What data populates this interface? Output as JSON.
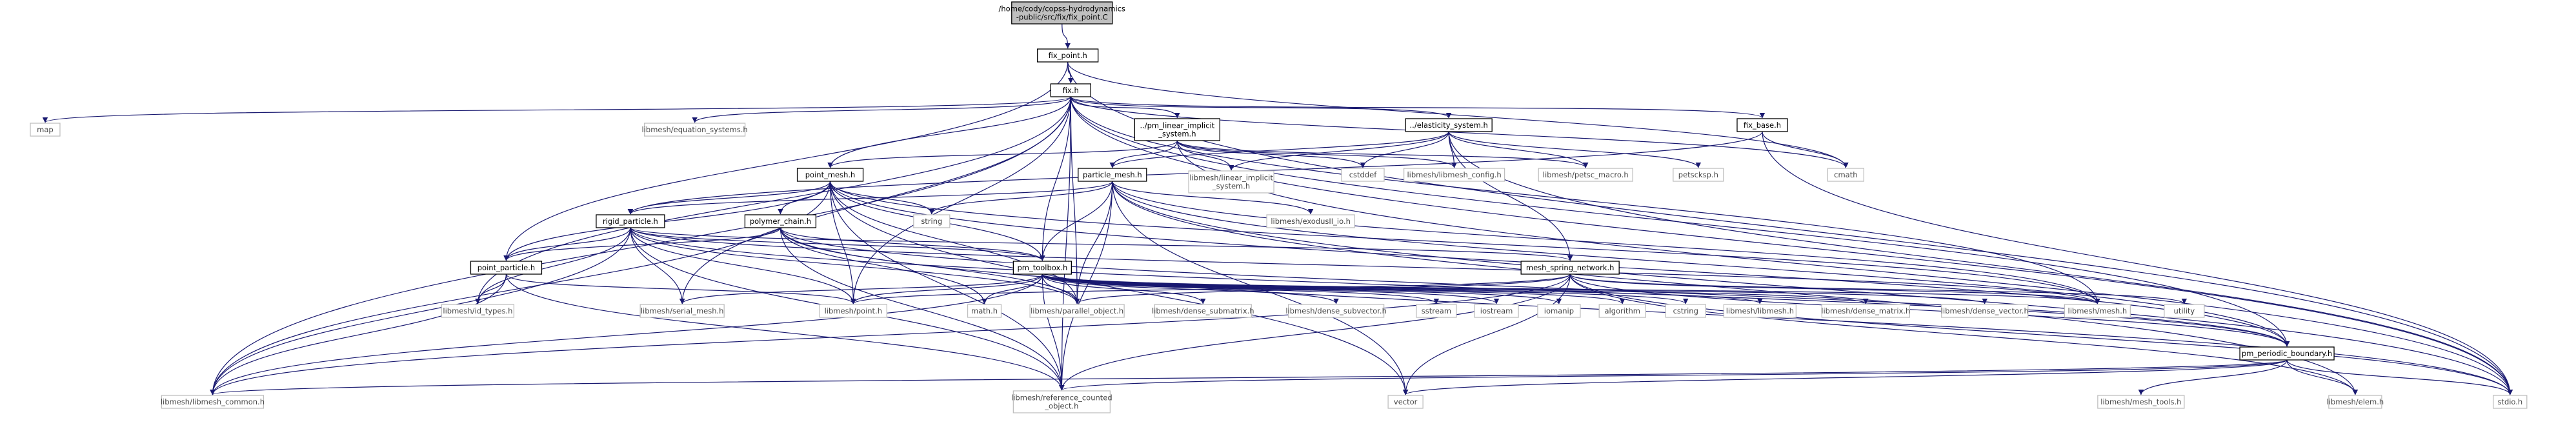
{
  "nodes": {
    "fix_point_c": {
      "lines": [
        "/home/cody/copss-hydrodynamics",
        "-public/src/fix/fix_point.C"
      ],
      "kind": "root"
    },
    "fix_point_h": {
      "lines": [
        "fix_point.h"
      ],
      "kind": "file"
    },
    "fix_h": {
      "lines": [
        "fix.h"
      ],
      "kind": "file"
    },
    "map": {
      "lines": [
        "map"
      ],
      "kind": "sys"
    },
    "equation_systems": {
      "lines": [
        "libmesh/equation_systems.h"
      ],
      "kind": "sys"
    },
    "pm_linear_implicit_system": {
      "lines": [
        "../pm_linear_implicit",
        "_system.h"
      ],
      "kind": "file"
    },
    "elasticity_system": {
      "lines": [
        "../elasticity_system.h"
      ],
      "kind": "file"
    },
    "fix_base": {
      "lines": [
        "fix_base.h"
      ],
      "kind": "file"
    },
    "cmath": {
      "lines": [
        "cmath"
      ],
      "kind": "sys"
    },
    "point_mesh": {
      "lines": [
        "point_mesh.h"
      ],
      "kind": "file"
    },
    "linear_implicit_system": {
      "lines": [
        "libmesh/linear_implicit",
        "_system.h"
      ],
      "kind": "sys"
    },
    "cstddef": {
      "lines": [
        "cstddef"
      ],
      "kind": "sys"
    },
    "libmesh_config": {
      "lines": [
        "libmesh/libmesh_config.h"
      ],
      "kind": "sys"
    },
    "petsc_macro": {
      "lines": [
        "libmesh/petsc_macro.h"
      ],
      "kind": "sys"
    },
    "petscksp": {
      "lines": [
        "petscksp.h"
      ],
      "kind": "sys"
    },
    "particle_mesh": {
      "lines": [
        "particle_mesh.h"
      ],
      "kind": "file"
    },
    "string": {
      "lines": [
        "string"
      ],
      "kind": "sys"
    },
    "exodusII_io": {
      "lines": [
        "libmesh/exodusII_io.h"
      ],
      "kind": "sys"
    },
    "rigid_particle": {
      "lines": [
        "rigid_particle.h"
      ],
      "kind": "file"
    },
    "polymer_chain": {
      "lines": [
        "polymer_chain.h"
      ],
      "kind": "file"
    },
    "pm_toolbox": {
      "lines": [
        "pm_toolbox.h"
      ],
      "kind": "file"
    },
    "mesh_spring_network": {
      "lines": [
        "mesh_spring_network.h"
      ],
      "kind": "file"
    },
    "point_particle": {
      "lines": [
        "point_particle.h"
      ],
      "kind": "file"
    },
    "id_types": {
      "lines": [
        "libmesh/id_types.h"
      ],
      "kind": "sys"
    },
    "serial_mesh": {
      "lines": [
        "libmesh/serial_mesh.h"
      ],
      "kind": "sys"
    },
    "point": {
      "lines": [
        "libmesh/point.h"
      ],
      "kind": "sys"
    },
    "math": {
      "lines": [
        "math.h"
      ],
      "kind": "sys"
    },
    "parallel_object": {
      "lines": [
        "libmesh/parallel_object.h"
      ],
      "kind": "sys"
    },
    "dense_submatrix": {
      "lines": [
        "libmesh/dense_submatrix.h"
      ],
      "kind": "sys"
    },
    "dense_subvector": {
      "lines": [
        "libmesh/dense_subvector.h"
      ],
      "kind": "sys"
    },
    "sstream": {
      "lines": [
        "sstream"
      ],
      "kind": "sys"
    },
    "iostream": {
      "lines": [
        "iostream"
      ],
      "kind": "sys"
    },
    "iomanip": {
      "lines": [
        "iomanip"
      ],
      "kind": "sys"
    },
    "algorithm": {
      "lines": [
        "algorithm"
      ],
      "kind": "sys"
    },
    "cstring": {
      "lines": [
        "cstring"
      ],
      "kind": "sys"
    },
    "libmesh": {
      "lines": [
        "libmesh/libmesh.h"
      ],
      "kind": "sys"
    },
    "dense_matrix": {
      "lines": [
        "libmesh/dense_matrix.h"
      ],
      "kind": "sys"
    },
    "dense_vector": {
      "lines": [
        "libmesh/dense_vector.h"
      ],
      "kind": "sys"
    },
    "mesh": {
      "lines": [
        "libmesh/mesh.h"
      ],
      "kind": "sys"
    },
    "utility": {
      "lines": [
        "utility"
      ],
      "kind": "sys"
    },
    "pm_periodic_boundary": {
      "lines": [
        "pm_periodic_boundary.h"
      ],
      "kind": "file"
    },
    "stdio": {
      "lines": [
        "stdio.h"
      ],
      "kind": "sys"
    },
    "libmesh_common": {
      "lines": [
        "libmesh/libmesh_common.h"
      ],
      "kind": "sys"
    },
    "reference_counted": {
      "lines": [
        "libmesh/reference_counted",
        "_object.h"
      ],
      "kind": "sys"
    },
    "vector": {
      "lines": [
        "vector"
      ],
      "kind": "sys"
    },
    "mesh_tools": {
      "lines": [
        "libmesh/mesh_tools.h"
      ],
      "kind": "sys"
    },
    "elem": {
      "lines": [
        "libmesh/elem.h"
      ],
      "kind": "sys"
    }
  },
  "edges": [
    [
      "fix_point_c",
      "fix_point_h"
    ],
    [
      "fix_point_h",
      "fix_h"
    ],
    [
      "fix_point_h",
      "point_particle"
    ],
    [
      "fix_point_h",
      "cmath"
    ],
    [
      "fix_point_h",
      "stdio"
    ],
    [
      "fix_h",
      "map"
    ],
    [
      "fix_h",
      "equation_systems"
    ],
    [
      "fix_h",
      "pm_linear_implicit_system"
    ],
    [
      "fix_h",
      "elasticity_system"
    ],
    [
      "fix_h",
      "fix_base"
    ],
    [
      "fix_h",
      "cmath"
    ],
    [
      "fix_h",
      "point_mesh"
    ],
    [
      "fix_h",
      "stdio"
    ],
    [
      "fix_h",
      "pm_toolbox"
    ],
    [
      "fix_h",
      "id_types"
    ],
    [
      "fix_h",
      "serial_mesh"
    ],
    [
      "fix_h",
      "point"
    ],
    [
      "fix_h",
      "parallel_object"
    ],
    [
      "fix_h",
      "libmesh_common"
    ],
    [
      "fix_h",
      "reference_counted"
    ],
    [
      "fix_h",
      "mesh"
    ],
    [
      "fix_h",
      "pm_periodic_boundary"
    ],
    [
      "pm_linear_implicit_system",
      "point_mesh"
    ],
    [
      "pm_linear_implicit_system",
      "particle_mesh"
    ],
    [
      "pm_linear_implicit_system",
      "linear_implicit_system"
    ],
    [
      "pm_linear_implicit_system",
      "cstddef"
    ],
    [
      "pm_linear_implicit_system",
      "libmesh_config"
    ],
    [
      "pm_linear_implicit_system",
      "petsc_macro"
    ],
    [
      "pm_linear_implicit_system",
      "stdio"
    ],
    [
      "elasticity_system",
      "particle_mesh"
    ],
    [
      "elasticity_system",
      "linear_implicit_system"
    ],
    [
      "elasticity_system",
      "cstddef"
    ],
    [
      "elasticity_system",
      "libmesh_config"
    ],
    [
      "elasticity_system",
      "petsc_macro"
    ],
    [
      "elasticity_system",
      "petscksp"
    ],
    [
      "elasticity_system",
      "mesh_spring_network"
    ],
    [
      "elasticity_system",
      "stdio"
    ],
    [
      "fix_base",
      "cmath"
    ],
    [
      "fix_base",
      "stdio"
    ],
    [
      "fix_base",
      "rigid_particle"
    ],
    [
      "point_mesh",
      "string"
    ],
    [
      "point_mesh",
      "rigid_particle"
    ],
    [
      "point_mesh",
      "polymer_chain"
    ],
    [
      "point_mesh",
      "pm_toolbox"
    ],
    [
      "point_mesh",
      "point_particle"
    ],
    [
      "point_mesh",
      "point"
    ],
    [
      "point_mesh",
      "parallel_object"
    ],
    [
      "point_mesh",
      "mesh"
    ],
    [
      "point_mesh",
      "pm_periodic_boundary"
    ],
    [
      "point_mesh",
      "reference_counted"
    ],
    [
      "point_mesh",
      "libmesh_common"
    ],
    [
      "point_mesh",
      "vector"
    ],
    [
      "particle_mesh",
      "string"
    ],
    [
      "particle_mesh",
      "exodusII_io"
    ],
    [
      "particle_mesh",
      "rigid_particle"
    ],
    [
      "particle_mesh",
      "pm_toolbox"
    ],
    [
      "particle_mesh",
      "mesh"
    ],
    [
      "particle_mesh",
      "pm_periodic_boundary"
    ],
    [
      "particle_mesh",
      "parallel_object"
    ],
    [
      "particle_mesh",
      "reference_counted"
    ],
    [
      "particle_mesh",
      "vector"
    ],
    [
      "particle_mesh",
      "stdio"
    ],
    [
      "particle_mesh",
      "elem"
    ],
    [
      "rigid_particle",
      "point_particle"
    ],
    [
      "rigid_particle",
      "mesh_spring_network"
    ],
    [
      "rigid_particle",
      "pm_toolbox"
    ],
    [
      "rigid_particle",
      "serial_mesh"
    ],
    [
      "rigid_particle",
      "point"
    ],
    [
      "rigid_particle",
      "parallel_object"
    ],
    [
      "rigid_particle",
      "reference_counted"
    ],
    [
      "rigid_particle",
      "libmesh_common"
    ],
    [
      "rigid_particle",
      "id_types"
    ],
    [
      "rigid_particle",
      "pm_periodic_boundary"
    ],
    [
      "rigid_particle",
      "mesh"
    ],
    [
      "polymer_chain",
      "point_particle"
    ],
    [
      "polymer_chain",
      "pm_toolbox"
    ],
    [
      "polymer_chain",
      "math"
    ],
    [
      "polymer_chain",
      "parallel_object"
    ],
    [
      "polymer_chain",
      "reference_counted"
    ],
    [
      "polymer_chain",
      "stdio"
    ],
    [
      "polymer_chain",
      "pm_periodic_boundary"
    ],
    [
      "point_particle",
      "id_types"
    ],
    [
      "point_particle",
      "point"
    ],
    [
      "point_particle",
      "libmesh_common"
    ],
    [
      "point_particle",
      "reference_counted"
    ],
    [
      "pm_toolbox",
      "point"
    ],
    [
      "pm_toolbox",
      "math"
    ],
    [
      "pm_toolbox",
      "parallel_object"
    ],
    [
      "pm_toolbox",
      "dense_submatrix"
    ],
    [
      "pm_toolbox",
      "dense_subvector"
    ],
    [
      "pm_toolbox",
      "sstream"
    ],
    [
      "pm_toolbox",
      "iostream"
    ],
    [
      "pm_toolbox",
      "iomanip"
    ],
    [
      "pm_toolbox",
      "algorithm"
    ],
    [
      "pm_toolbox",
      "cstring"
    ],
    [
      "pm_toolbox",
      "libmesh"
    ],
    [
      "pm_toolbox",
      "dense_matrix"
    ],
    [
      "pm_toolbox",
      "dense_vector"
    ],
    [
      "pm_toolbox",
      "mesh"
    ],
    [
      "pm_toolbox",
      "serial_mesh"
    ],
    [
      "pm_toolbox",
      "reference_counted"
    ],
    [
      "pm_toolbox",
      "libmesh_common"
    ],
    [
      "mesh_spring_network",
      "mesh"
    ],
    [
      "mesh_spring_network",
      "point"
    ],
    [
      "mesh_spring_network",
      "parallel_object"
    ],
    [
      "mesh_spring_network",
      "utility"
    ],
    [
      "mesh_spring_network",
      "pm_periodic_boundary"
    ],
    [
      "mesh_spring_network",
      "stdio"
    ],
    [
      "mesh_spring_network",
      "vector"
    ],
    [
      "mesh_spring_network",
      "reference_counted"
    ],
    [
      "mesh_spring_network",
      "libmesh_common"
    ],
    [
      "mesh_spring_network",
      "elem"
    ],
    [
      "pm_periodic_boundary",
      "libmesh_common"
    ],
    [
      "pm_periodic_boundary",
      "reference_counted"
    ],
    [
      "pm_periodic_boundary",
      "vector"
    ],
    [
      "pm_periodic_boundary",
      "mesh_tools"
    ],
    [
      "pm_periodic_boundary",
      "elem"
    ],
    [
      "pm_periodic_boundary",
      "stdio"
    ]
  ]
}
